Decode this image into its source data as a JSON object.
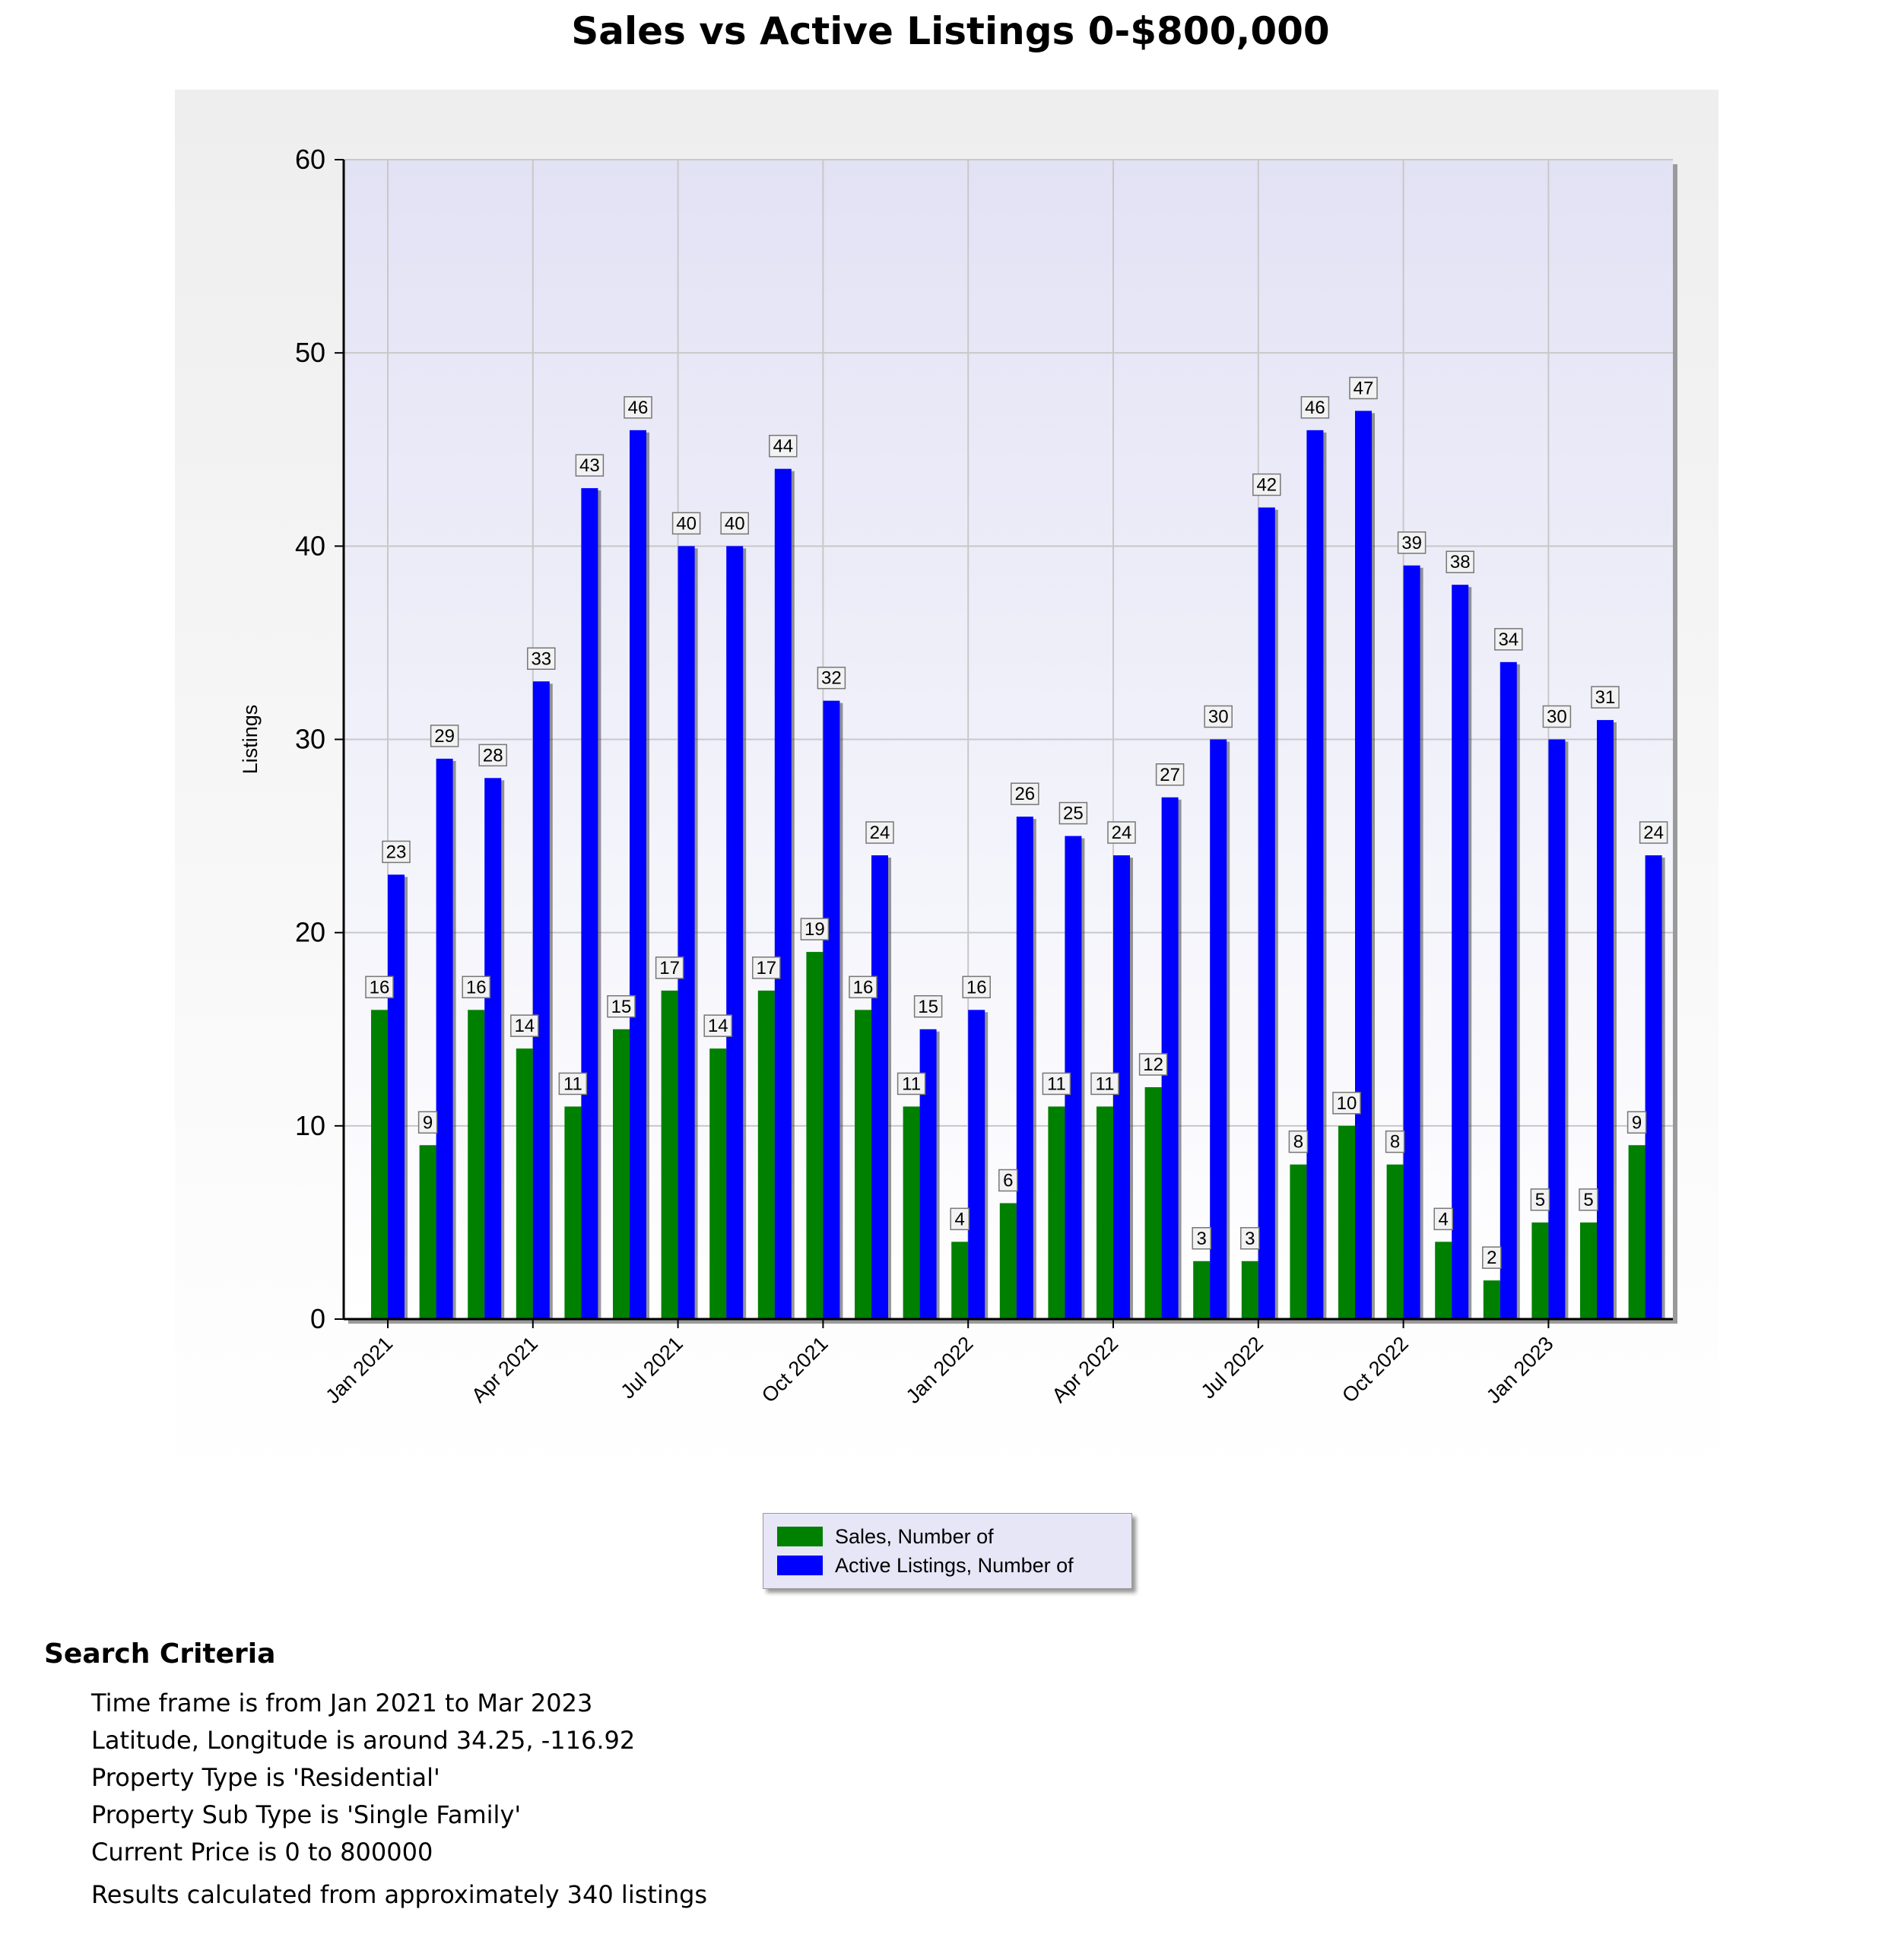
{
  "title": "Sales vs Active Listings 0-$800,000",
  "chart_data": {
    "type": "bar",
    "ylabel": "Listings",
    "xlabel": "",
    "ylim": [
      0,
      60
    ],
    "yticks": [
      0,
      10,
      20,
      30,
      40,
      50,
      60
    ],
    "grid": true,
    "legend_position": "bottom",
    "categories": [
      "Jan 2021",
      "Feb 2021",
      "Mar 2021",
      "Apr 2021",
      "May 2021",
      "Jun 2021",
      "Jul 2021",
      "Aug 2021",
      "Sep 2021",
      "Oct 2021",
      "Nov 2021",
      "Dec 2021",
      "Jan 2022",
      "Feb 2022",
      "Mar 2022",
      "Apr 2022",
      "May 2022",
      "Jun 2022",
      "Jul 2022",
      "Aug 2022",
      "Sep 2022",
      "Oct 2022",
      "Nov 2022",
      "Dec 2022",
      "Jan 2023",
      "Feb 2023",
      "Mar 2023"
    ],
    "tick_labels": [
      "Jan 2021",
      "Apr 2021",
      "Jul 2021",
      "Oct 2021",
      "Jan 2022",
      "Apr 2022",
      "Jul 2022",
      "Oct 2022",
      "Jan 2023"
    ],
    "series": [
      {
        "name": "Sales, Number of",
        "color": "#008000",
        "values": [
          16,
          9,
          16,
          14,
          11,
          15,
          17,
          14,
          17,
          19,
          16,
          11,
          4,
          6,
          11,
          11,
          12,
          3,
          3,
          8,
          10,
          8,
          4,
          2,
          5,
          5,
          9
        ]
      },
      {
        "name": "Active Listings, Number of",
        "color": "#0000ff",
        "values": [
          23,
          29,
          28,
          33,
          43,
          46,
          40,
          40,
          44,
          32,
          24,
          15,
          16,
          26,
          25,
          24,
          27,
          30,
          42,
          46,
          47,
          39,
          38,
          34,
          30,
          31,
          24
        ]
      }
    ]
  },
  "search_criteria": {
    "heading": "Search Criteria",
    "lines": [
      "Time frame is from Jan 2021 to Mar 2023",
      "Latitude, Longitude is around 34.25, -116.92",
      "Property Type is 'Residential'",
      "Property Sub Type is 'Single Family'",
      "Current Price is 0 to 800000"
    ],
    "results": "Results calculated from approximately 340 listings"
  }
}
